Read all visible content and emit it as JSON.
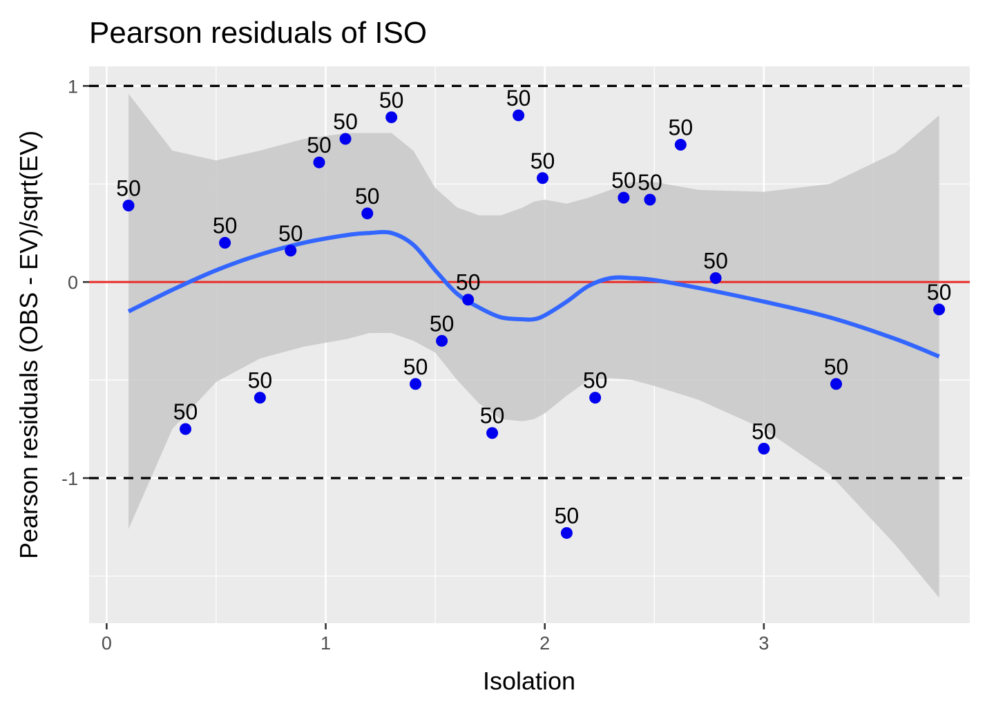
{
  "chart_data": {
    "type": "scatter",
    "title": "Pearson residuals of ISO",
    "xlabel": "Isolation",
    "ylabel": "Pearson residuals (OBS - EV)/sqrt(EV)",
    "xlim": [
      -0.08,
      3.94
    ],
    "ylim": [
      -1.74,
      1.1
    ],
    "x_ticks": [
      0,
      1,
      2,
      3
    ],
    "x_tick_labels": [
      "0",
      "1",
      "2",
      "3"
    ],
    "y_ticks": [
      -1,
      0,
      1
    ],
    "y_tick_labels": [
      "-1",
      "0",
      "1"
    ],
    "grid": true,
    "points": [
      {
        "x": 0.1,
        "y": 0.39,
        "label": "50"
      },
      {
        "x": 0.36,
        "y": -0.75,
        "label": "50"
      },
      {
        "x": 0.54,
        "y": 0.2,
        "label": "50"
      },
      {
        "x": 0.7,
        "y": -0.59,
        "label": "50"
      },
      {
        "x": 0.84,
        "y": 0.16,
        "label": "50"
      },
      {
        "x": 0.97,
        "y": 0.61,
        "label": "50"
      },
      {
        "x": 1.09,
        "y": 0.73,
        "label": "50"
      },
      {
        "x": 1.19,
        "y": 0.35,
        "label": "50"
      },
      {
        "x": 1.3,
        "y": 0.84,
        "label": "50"
      },
      {
        "x": 1.41,
        "y": -0.52,
        "label": "50"
      },
      {
        "x": 1.53,
        "y": -0.3,
        "label": "50"
      },
      {
        "x": 1.65,
        "y": -0.09,
        "label": "50"
      },
      {
        "x": 1.76,
        "y": -0.77,
        "label": "50"
      },
      {
        "x": 1.88,
        "y": 0.85,
        "label": "50"
      },
      {
        "x": 1.99,
        "y": 0.53,
        "label": "50"
      },
      {
        "x": 2.1,
        "y": -1.28,
        "label": "50"
      },
      {
        "x": 2.23,
        "y": -0.59,
        "label": "50"
      },
      {
        "x": 2.36,
        "y": 0.43,
        "label": "50"
      },
      {
        "x": 2.48,
        "y": 0.42,
        "label": "50"
      },
      {
        "x": 2.62,
        "y": 0.7,
        "label": "50"
      },
      {
        "x": 2.78,
        "y": 0.02,
        "label": "50"
      },
      {
        "x": 3.0,
        "y": -0.85,
        "label": "50"
      },
      {
        "x": 3.33,
        "y": -0.52,
        "label": "50"
      },
      {
        "x": 3.8,
        "y": -0.14,
        "label": "50"
      }
    ],
    "smooth_line": {
      "x": [
        0.1,
        0.3,
        0.5,
        0.7,
        0.9,
        1.1,
        1.2,
        1.3,
        1.4,
        1.5,
        1.6,
        1.7,
        1.8,
        1.9,
        1.95,
        2.0,
        2.1,
        2.2,
        2.3,
        2.4,
        2.5,
        2.7,
        3.0,
        3.3,
        3.6,
        3.8
      ],
      "y": [
        -0.15,
        -0.04,
        0.06,
        0.14,
        0.2,
        0.24,
        0.25,
        0.25,
        0.19,
        0.06,
        -0.06,
        -0.13,
        -0.18,
        -0.19,
        -0.19,
        -0.17,
        -0.1,
        -0.02,
        0.02,
        0.02,
        0.01,
        -0.03,
        -0.1,
        -0.18,
        -0.29,
        -0.38
      ]
    },
    "confidence_band": {
      "x": [
        0.1,
        0.3,
        0.5,
        0.7,
        0.9,
        1.1,
        1.2,
        1.3,
        1.4,
        1.5,
        1.6,
        1.7,
        1.8,
        1.9,
        1.95,
        2.0,
        2.1,
        2.2,
        2.3,
        2.4,
        2.5,
        2.7,
        3.0,
        3.3,
        3.6,
        3.8
      ],
      "upper": [
        0.96,
        0.67,
        0.62,
        0.67,
        0.73,
        0.76,
        0.76,
        0.76,
        0.67,
        0.48,
        0.38,
        0.34,
        0.34,
        0.38,
        0.41,
        0.42,
        0.4,
        0.43,
        0.47,
        0.51,
        0.51,
        0.47,
        0.46,
        0.5,
        0.66,
        0.85
      ],
      "lower": [
        -1.26,
        -0.75,
        -0.51,
        -0.39,
        -0.33,
        -0.29,
        -0.26,
        -0.26,
        -0.3,
        -0.36,
        -0.5,
        -0.62,
        -0.7,
        -0.71,
        -0.7,
        -0.67,
        -0.58,
        -0.5,
        -0.49,
        -0.5,
        -0.53,
        -0.6,
        -0.75,
        -0.98,
        -1.34,
        -1.61
      ]
    },
    "reference_lines": [
      {
        "y": 0,
        "style": "solid",
        "color": "#e8312c"
      },
      {
        "y": 1,
        "style": "dashed",
        "color": "#000000"
      },
      {
        "y": -1,
        "style": "dashed",
        "color": "#000000"
      }
    ],
    "colors": {
      "panel_background": "#ebebeb",
      "grid_major": "#ffffff",
      "point": "#0000ee",
      "smooth_line": "#3366ff",
      "band": "#c8c8c8"
    }
  }
}
